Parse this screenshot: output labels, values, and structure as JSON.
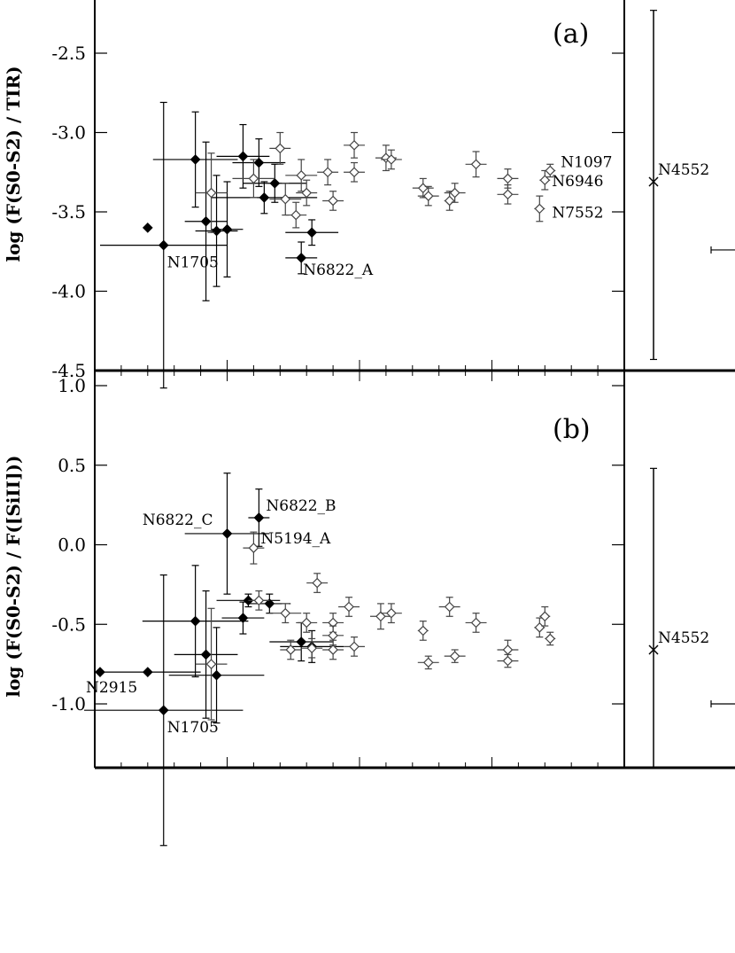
{
  "chart_data": [
    {
      "id": "a",
      "type": "scatter",
      "panel_label": "(a)",
      "ylabel": "log (F(S0-S2) / TIR)",
      "ylim": [
        -4.5,
        -2.2
      ],
      "yticks": [
        -2.5,
        -3.0,
        -3.5,
        -4.0,
        -4.5
      ],
      "ytick_labels": [
        "-2.5",
        "-3.0",
        "-3.5",
        "-4.0",
        "-4.5"
      ],
      "x_units": "relative position (0-1) across main panel; x-axis not labeled",
      "series": [
        {
          "marker": "filled-diamond",
          "points": [
            {
              "x": 0.1,
              "y": -3.6,
              "xerr": 0.0,
              "yerr": 0.0,
              "label": ""
            },
            {
              "x": 0.13,
              "y": -3.71,
              "xerr": 0.12,
              "yerr": 0.9,
              "label": "N1705"
            },
            {
              "x": 0.19,
              "y": -3.17,
              "xerr": 0.08,
              "yerr": 0.3,
              "label": ""
            },
            {
              "x": 0.21,
              "y": -3.56,
              "xerr": 0.04,
              "yerr": 0.5,
              "label": ""
            },
            {
              "x": 0.23,
              "y": -3.62,
              "xerr": 0.04,
              "yerr": 0.35,
              "label": ""
            },
            {
              "x": 0.25,
              "y": -3.61,
              "xerr": 0.03,
              "yerr": 0.3,
              "label": ""
            },
            {
              "x": 0.28,
              "y": -3.15,
              "xerr": 0.05,
              "yerr": 0.2,
              "label": ""
            },
            {
              "x": 0.31,
              "y": -3.19,
              "xerr": 0.05,
              "yerr": 0.15,
              "label": ""
            },
            {
              "x": 0.32,
              "y": -3.41,
              "xerr": 0.1,
              "yerr": 0.1,
              "label": ""
            },
            {
              "x": 0.34,
              "y": -3.32,
              "xerr": 0.06,
              "yerr": 0.12,
              "label": ""
            },
            {
              "x": 0.39,
              "y": -3.79,
              "xerr": 0.03,
              "yerr": 0.1,
              "label": "N6822_A"
            },
            {
              "x": 0.41,
              "y": -3.63,
              "xerr": 0.05,
              "yerr": 0.08,
              "label": ""
            }
          ]
        },
        {
          "marker": "open-diamond",
          "points": [
            {
              "x": 0.22,
              "y": -3.38,
              "xerr": 0.03,
              "yerr": 0.25,
              "label": ""
            },
            {
              "x": 0.3,
              "y": -3.29,
              "xerr": 0.04,
              "yerr": 0.12,
              "label": ""
            },
            {
              "x": 0.35,
              "y": -3.1,
              "xerr": 0.02,
              "yerr": 0.1,
              "label": ""
            },
            {
              "x": 0.36,
              "y": -3.42,
              "xerr": 0.03,
              "yerr": 0.1,
              "label": ""
            },
            {
              "x": 0.38,
              "y": -3.52,
              "xerr": 0.02,
              "yerr": 0.08,
              "label": ""
            },
            {
              "x": 0.39,
              "y": -3.27,
              "xerr": 0.03,
              "yerr": 0.1,
              "label": ""
            },
            {
              "x": 0.4,
              "y": -3.38,
              "xerr": 0.02,
              "yerr": 0.08,
              "label": ""
            },
            {
              "x": 0.44,
              "y": -3.25,
              "xerr": 0.02,
              "yerr": 0.08,
              "label": ""
            },
            {
              "x": 0.45,
              "y": -3.43,
              "xerr": 0.02,
              "yerr": 0.06,
              "label": ""
            },
            {
              "x": 0.49,
              "y": -3.08,
              "xerr": 0.02,
              "yerr": 0.08,
              "label": ""
            },
            {
              "x": 0.49,
              "y": -3.25,
              "xerr": 0.02,
              "yerr": 0.06,
              "label": ""
            },
            {
              "x": 0.55,
              "y": -3.16,
              "xerr": 0.02,
              "yerr": 0.08,
              "label": ""
            },
            {
              "x": 0.56,
              "y": -3.17,
              "xerr": 0.02,
              "yerr": 0.06,
              "label": ""
            },
            {
              "x": 0.62,
              "y": -3.35,
              "xerr": 0.02,
              "yerr": 0.06,
              "label": ""
            },
            {
              "x": 0.63,
              "y": -3.4,
              "xerr": 0.02,
              "yerr": 0.06,
              "label": ""
            },
            {
              "x": 0.67,
              "y": -3.43,
              "xerr": 0.01,
              "yerr": 0.06,
              "label": ""
            },
            {
              "x": 0.68,
              "y": -3.38,
              "xerr": 0.02,
              "yerr": 0.06,
              "label": ""
            },
            {
              "x": 0.72,
              "y": -3.2,
              "xerr": 0.02,
              "yerr": 0.08,
              "label": ""
            },
            {
              "x": 0.78,
              "y": -3.29,
              "xerr": 0.02,
              "yerr": 0.06,
              "label": ""
            },
            {
              "x": 0.78,
              "y": -3.39,
              "xerr": 0.02,
              "yerr": 0.06,
              "label": ""
            },
            {
              "x": 0.84,
              "y": -3.48,
              "xerr": 0.01,
              "yerr": 0.08,
              "label": "N7552"
            },
            {
              "x": 0.85,
              "y": -3.3,
              "xerr": 0.01,
              "yerr": 0.06,
              "label": "N6946"
            },
            {
              "x": 0.86,
              "y": -3.24,
              "xerr": 0.01,
              "yerr": 0.04,
              "label": "N1097"
            }
          ]
        }
      ],
      "side_point": {
        "y": -3.31,
        "yerr_low": 1.12,
        "yerr_high": 1.08,
        "marker": "x",
        "label": "N4552",
        "extra_bar_y": -3.74
      }
    },
    {
      "id": "b",
      "type": "scatter",
      "panel_label": "(b)",
      "ylabel": "log (F(S0-S2) / F([SiII]))",
      "ylim": [
        -1.4,
        1.0
      ],
      "yticks": [
        1.0,
        0.5,
        0.0,
        -0.5,
        -1.0
      ],
      "ytick_labels": [
        "1.0",
        "0.5",
        "0.0",
        "-0.5",
        "-1.0"
      ],
      "x_units": "relative position (0-1) across main panel; x-axis not labeled",
      "series": [
        {
          "marker": "filled-diamond",
          "points": [
            {
              "x": 0.01,
              "y": -0.8,
              "xerr": 0.0,
              "yerr": 0.0,
              "label": "N2915"
            },
            {
              "x": 0.1,
              "y": -0.8,
              "xerr": 0.1,
              "yerr": 0.0,
              "label": ""
            },
            {
              "x": 0.13,
              "y": -1.04,
              "xerr": 0.15,
              "yerr": 0.85,
              "label": "N1705"
            },
            {
              "x": 0.19,
              "y": -0.48,
              "xerr": 0.1,
              "yerr": 0.35,
              "label": ""
            },
            {
              "x": 0.21,
              "y": -0.69,
              "xerr": 0.06,
              "yerr": 0.4,
              "label": ""
            },
            {
              "x": 0.23,
              "y": -0.82,
              "xerr": 0.09,
              "yerr": 0.3,
              "label": ""
            },
            {
              "x": 0.25,
              "y": 0.07,
              "xerr": 0.08,
              "yerr": 0.38,
              "label": "N6822_C"
            },
            {
              "x": 0.28,
              "y": -0.46,
              "xerr": 0.04,
              "yerr": 0.1,
              "label": ""
            },
            {
              "x": 0.29,
              "y": -0.35,
              "xerr": 0.06,
              "yerr": 0.04,
              "label": ""
            },
            {
              "x": 0.31,
              "y": 0.17,
              "xerr": 0.02,
              "yerr": 0.18,
              "label": "N6822_B"
            },
            {
              "x": 0.33,
              "y": -0.37,
              "xerr": 0.04,
              "yerr": 0.06,
              "label": ""
            },
            {
              "x": 0.39,
              "y": -0.61,
              "xerr": 0.06,
              "yerr": 0.12,
              "label": ""
            },
            {
              "x": 0.41,
              "y": -0.64,
              "xerr": 0.06,
              "yerr": 0.1,
              "label": ""
            }
          ]
        },
        {
          "marker": "open-diamond",
          "points": [
            {
              "x": 0.22,
              "y": -0.75,
              "xerr": 0.03,
              "yerr": 0.35,
              "label": ""
            },
            {
              "x": 0.3,
              "y": -0.02,
              "xerr": 0.02,
              "yerr": 0.1,
              "label": "N5194_A"
            },
            {
              "x": 0.31,
              "y": -0.35,
              "xerr": 0.02,
              "yerr": 0.06,
              "label": ""
            },
            {
              "x": 0.36,
              "y": -0.43,
              "xerr": 0.03,
              "yerr": 0.06,
              "label": ""
            },
            {
              "x": 0.37,
              "y": -0.66,
              "xerr": 0.02,
              "yerr": 0.06,
              "label": ""
            },
            {
              "x": 0.4,
              "y": -0.49,
              "xerr": 0.02,
              "yerr": 0.06,
              "label": ""
            },
            {
              "x": 0.41,
              "y": -0.65,
              "xerr": 0.02,
              "yerr": 0.06,
              "label": ""
            },
            {
              "x": 0.42,
              "y": -0.24,
              "xerr": 0.02,
              "yerr": 0.06,
              "label": ""
            },
            {
              "x": 0.45,
              "y": -0.49,
              "xerr": 0.02,
              "yerr": 0.06,
              "label": ""
            },
            {
              "x": 0.45,
              "y": -0.57,
              "xerr": 0.02,
              "yerr": 0.06,
              "label": ""
            },
            {
              "x": 0.45,
              "y": -0.66,
              "xerr": 0.02,
              "yerr": 0.06,
              "label": ""
            },
            {
              "x": 0.48,
              "y": -0.39,
              "xerr": 0.02,
              "yerr": 0.06,
              "label": ""
            },
            {
              "x": 0.49,
              "y": -0.64,
              "xerr": 0.02,
              "yerr": 0.06,
              "label": ""
            },
            {
              "x": 0.54,
              "y": -0.45,
              "xerr": 0.02,
              "yerr": 0.08,
              "label": ""
            },
            {
              "x": 0.56,
              "y": -0.43,
              "xerr": 0.02,
              "yerr": 0.06,
              "label": ""
            },
            {
              "x": 0.62,
              "y": -0.54,
              "xerr": 0.01,
              "yerr": 0.06,
              "label": ""
            },
            {
              "x": 0.63,
              "y": -0.74,
              "xerr": 0.02,
              "yerr": 0.04,
              "label": ""
            },
            {
              "x": 0.67,
              "y": -0.39,
              "xerr": 0.02,
              "yerr": 0.06,
              "label": ""
            },
            {
              "x": 0.68,
              "y": -0.7,
              "xerr": 0.02,
              "yerr": 0.04,
              "label": ""
            },
            {
              "x": 0.72,
              "y": -0.49,
              "xerr": 0.02,
              "yerr": 0.06,
              "label": ""
            },
            {
              "x": 0.78,
              "y": -0.66,
              "xerr": 0.02,
              "yerr": 0.06,
              "label": ""
            },
            {
              "x": 0.78,
              "y": -0.73,
              "xerr": 0.02,
              "yerr": 0.04,
              "label": ""
            },
            {
              "x": 0.84,
              "y": -0.52,
              "xerr": 0.01,
              "yerr": 0.06,
              "label": ""
            },
            {
              "x": 0.85,
              "y": -0.45,
              "xerr": 0.01,
              "yerr": 0.06,
              "label": ""
            },
            {
              "x": 0.86,
              "y": -0.59,
              "xerr": 0.01,
              "yerr": 0.04,
              "label": ""
            }
          ]
        }
      ],
      "side_point": {
        "y": -0.66,
        "yerr_low": 0.74,
        "yerr_high": 1.14,
        "marker": "x",
        "label": "N4552",
        "extra_bar_y": -1.0
      }
    }
  ]
}
